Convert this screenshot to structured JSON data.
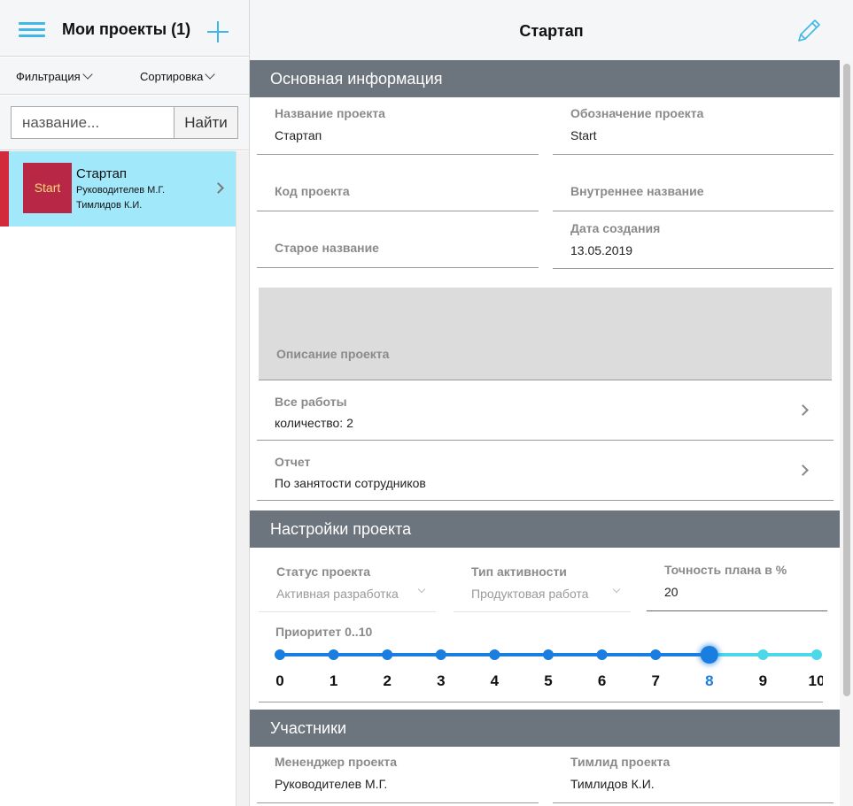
{
  "left": {
    "title": "Мои проекты (1)",
    "filter_label": "Фильтрация",
    "sort_label": "Сортировка",
    "search_placeholder": "название...",
    "search_button": "Найти",
    "projects": [
      {
        "thumb_text": "Start",
        "name": "Стартап",
        "manager": "Руководителев М.Г.",
        "lead": "Тимлидов К.И."
      }
    ]
  },
  "right": {
    "title": "Стартап",
    "sections": {
      "basic": "Основная информация",
      "settings": "Настройки проекта",
      "members": "Участники"
    },
    "basic": {
      "project_name_label": "Название проекта",
      "project_name_value": "Стартап",
      "project_code_name_label": "Обозначение проекта",
      "project_code_name_value": "Start",
      "project_code_label": "Код проекта",
      "internal_name_label": "Внутреннее название",
      "old_name_label": "Старое название",
      "created_label": "Дата создания",
      "created_value": "13.05.2019",
      "description_label": "Описание проекта"
    },
    "links": [
      {
        "label": "Все работы",
        "value": "количество: 2"
      },
      {
        "label": "Отчет",
        "value": "По занятости сотрудников"
      }
    ],
    "settings": {
      "status_label": "Статус проекта",
      "status_value": "Активная разработка",
      "activity_label": "Тип активности",
      "activity_value": "Продуктовая работа",
      "accuracy_label": "Точность плана в %",
      "accuracy_value": "20",
      "priority_label": "Приоритет 0..10",
      "priority_value": 8,
      "priority_ticks": [
        "0",
        "1",
        "2",
        "3",
        "4",
        "5",
        "6",
        "7",
        "8",
        "9",
        "10"
      ]
    },
    "members": {
      "pm_label": "Мененджер проекта",
      "pm_value": "Руководителев М.Г.",
      "lead_label": "Тимлид проекта",
      "lead_value": "Тимлидов К.И."
    },
    "colors": {
      "accent": "#41b7e8",
      "section_bar": "#6c757d",
      "slider_active": "#1a7de0",
      "slider_rest": "#4cd8e8",
      "selected_item": "#a2e8fb",
      "marker": "#d22a3a"
    }
  }
}
